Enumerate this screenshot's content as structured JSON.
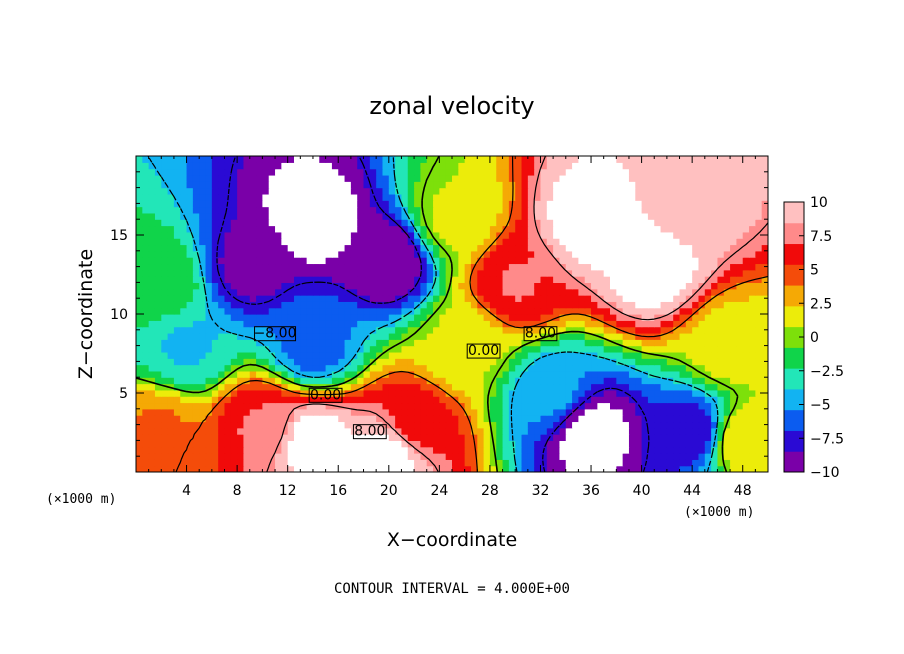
{
  "chart_data": {
    "type": "heatmap",
    "title": "zonal velocity",
    "xlabel": "X−coordinate",
    "ylabel": "Z−coordinate",
    "x_unit": "(×1000 m)",
    "x_unit_right": "(×1000 m)",
    "xlim": [
      0,
      50
    ],
    "ylim": [
      0,
      20
    ],
    "x_ticks": [
      4,
      8,
      12,
      16,
      20,
      24,
      28,
      32,
      36,
      40,
      44,
      48
    ],
    "x_tick_labels": [
      "4",
      "8",
      "12",
      "16",
      "20",
      "24",
      "28",
      "32",
      "36",
      "40",
      "44",
      "48"
    ],
    "y_ticks": [
      5,
      10,
      15
    ],
    "y_tick_labels": [
      "5",
      "10",
      "15"
    ],
    "colorbar": {
      "min": -10,
      "max": 10,
      "ticks": [
        10,
        7.5,
        5,
        2.5,
        0,
        -2.5,
        -5,
        -7.5,
        -10
      ],
      "tick_labels": [
        "10",
        "7.5",
        "5",
        "2.5",
        "0",
        "−2.5",
        "−5",
        "−7.5",
        "−10"
      ],
      "colors": [
        "#7a00a8",
        "#2a0ad4",
        "#0b5cf0",
        "#12b3f2",
        "#22e6b8",
        "#10d44a",
        "#7de00a",
        "#ecec0a",
        "#f5a905",
        "#f44c0a",
        "#f10a0a",
        "#ff8a8a",
        "#ffc0c0"
      ]
    },
    "contour_interval_text": "CONTOUR INTERVAL = 4.000E+00",
    "contour_labels": [
      "−8.00",
      "8.00",
      "0.00",
      "0.00",
      "8.00"
    ],
    "features": [
      {
        "x": 14,
        "z": 16,
        "value": -11
      },
      {
        "x": 20,
        "z": 13.5,
        "value": -10
      },
      {
        "x": 9,
        "z": 13,
        "value": -9
      },
      {
        "x": 36,
        "z": 16,
        "value": 11
      },
      {
        "x": 41,
        "z": 13,
        "value": 11
      },
      {
        "x": 44,
        "z": 17,
        "value": 9
      },
      {
        "x": 30,
        "z": 12,
        "value": 7
      },
      {
        "x": 14,
        "z": 2,
        "value": 11
      },
      {
        "x": 20,
        "z": 1.2,
        "value": 11
      },
      {
        "x": 10,
        "z": 3,
        "value": 7
      },
      {
        "x": 22,
        "z": 3,
        "value": 6
      },
      {
        "x": 36,
        "z": 2.5,
        "value": -11
      },
      {
        "x": 44,
        "z": 2.5,
        "value": -8
      },
      {
        "x": 33,
        "z": 5,
        "value": -5
      },
      {
        "x": 2,
        "z": 12,
        "value": -1
      },
      {
        "x": 4,
        "z": 8,
        "value": -4
      },
      {
        "x": 14,
        "z": 8,
        "value": -6
      },
      {
        "x": 26,
        "z": 8,
        "value": 1
      },
      {
        "x": 47,
        "z": 8,
        "value": 1.5
      },
      {
        "x": 2,
        "z": 2.5,
        "value": 4
      },
      {
        "x": 48,
        "z": 2,
        "value": 2
      },
      {
        "x": 25,
        "z": 16,
        "value": 1
      }
    ]
  }
}
